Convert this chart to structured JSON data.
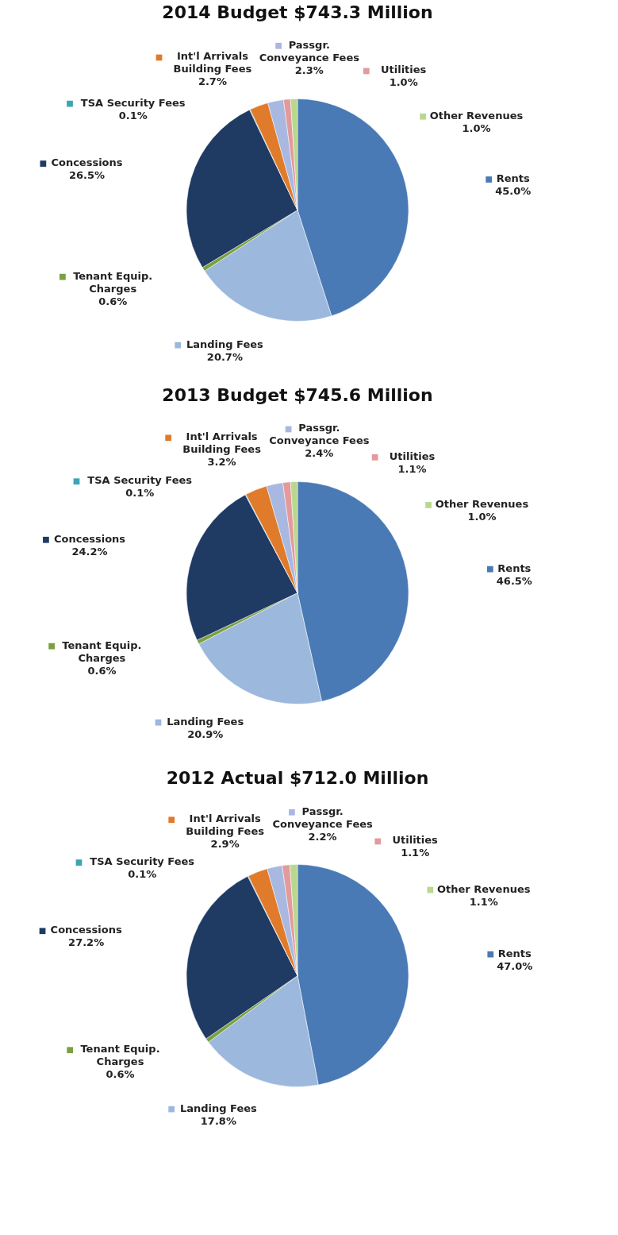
{
  "chart_data": [
    {
      "type": "pie",
      "title": "2014 Budget $743.3 Million",
      "categories": [
        "Rents",
        "Landing Fees",
        "Tenant Equip. Charges",
        "Concessions",
        "TSA Security Fees",
        "Int'l Arrivals Building Fees",
        "Passgr. Conveyance Fees",
        "Utilities",
        "Other Revenues"
      ],
      "values": [
        45.0,
        20.7,
        0.6,
        26.5,
        0.1,
        2.7,
        2.3,
        1.0,
        1.0
      ],
      "value_labels": [
        "45.0%",
        "20.7%",
        "0.6%",
        "26.5%",
        "0.1%",
        "2.7%",
        "2.3%",
        "1.0%",
        "1.0%"
      ],
      "colors": [
        "#4a7ab5",
        "#9db8dd",
        "#7aa040",
        "#1f3a63",
        "#3ba5b5",
        "#e07b2c",
        "#a9b8e0",
        "#e39a9c",
        "#b9d88e"
      ],
      "legend": "top left"
    },
    {
      "type": "pie",
      "title": "2013 Budget $745.6 Million",
      "categories": [
        "Rents",
        "Landing Fees",
        "Tenant Equip. Charges",
        "Concessions",
        "TSA Security Fees",
        "Int'l Arrivals Building Fees",
        "Passgr. Conveyance Fees",
        "Utilities",
        "Other Revenues"
      ],
      "values": [
        46.5,
        20.9,
        0.6,
        24.2,
        0.1,
        3.2,
        2.4,
        1.1,
        1.0
      ],
      "value_labels": [
        "46.5%",
        "20.9%",
        "0.6%",
        "24.2%",
        "0.1%",
        "3.2%",
        "2.4%",
        "1.1%",
        "1.0%"
      ],
      "colors": [
        "#4a7ab5",
        "#9db8dd",
        "#7aa040",
        "#1f3a63",
        "#3ba5b5",
        "#e07b2c",
        "#a9b8e0",
        "#e39a9c",
        "#b9d88e"
      ],
      "legend": "top left"
    },
    {
      "type": "pie",
      "title": "2012 Actual $712.0 Million",
      "categories": [
        "Rents",
        "Landing Fees",
        "Tenant Equip. Charges",
        "Concessions",
        "TSA Security Fees",
        "Int'l Arrivals Building Fees",
        "Passgr. Conveyance Fees",
        "Utilities",
        "Other Revenues"
      ],
      "values": [
        47.0,
        17.8,
        0.6,
        27.2,
        0.1,
        2.9,
        2.2,
        1.1,
        1.1
      ],
      "value_labels": [
        "47.0%",
        "17.8%",
        "0.6%",
        "27.2%",
        "0.1%",
        "2.9%",
        "2.2%",
        "1.1%",
        "1.1%"
      ],
      "colors": [
        "#4a7ab5",
        "#9db8dd",
        "#7aa040",
        "#1f3a63",
        "#3ba5b5",
        "#e07b2c",
        "#a9b8e0",
        "#e39a9c",
        "#b9d88e"
      ],
      "legend": "top left"
    }
  ]
}
